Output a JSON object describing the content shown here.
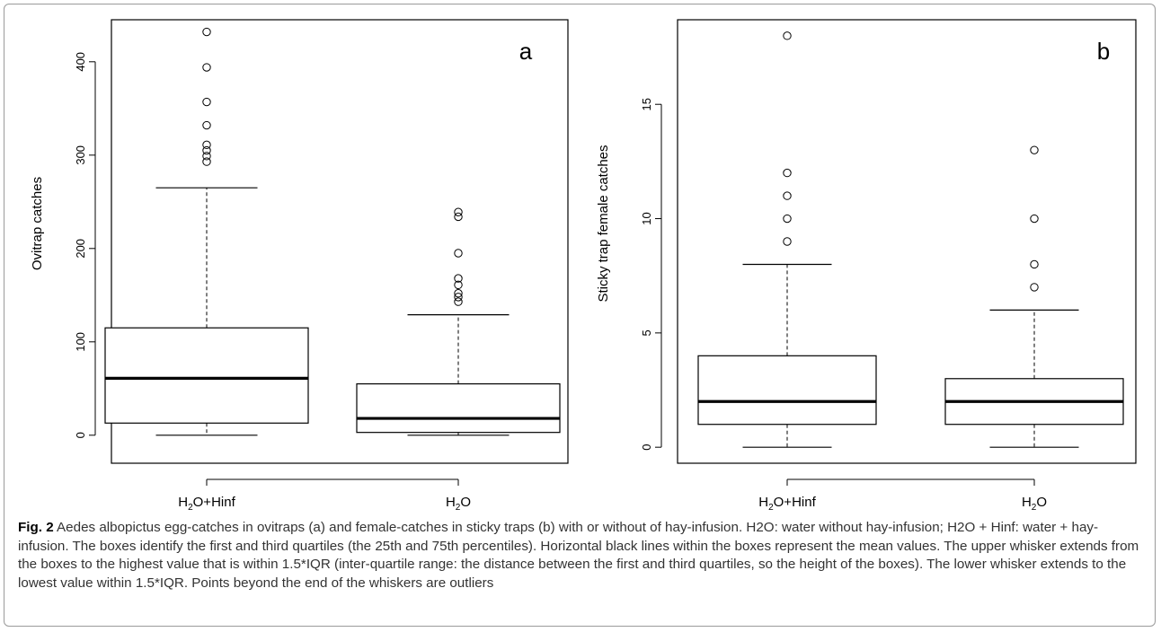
{
  "chart_data": [
    {
      "panel": "a",
      "type": "box",
      "ylabel": "Ovitrap catches",
      "categories": [
        "H2O+Hinf",
        "H2O"
      ],
      "category_labels": [
        {
          "pre": "H",
          "sub": "2",
          "post": "O+Hinf"
        },
        {
          "pre": "H",
          "sub": "2",
          "post": "O"
        }
      ],
      "ylim": [
        -30,
        445
      ],
      "yticks": [
        0,
        100,
        200,
        300,
        400
      ],
      "boxes": [
        {
          "min": 0,
          "q1": 13,
          "median": 61,
          "q3": 115,
          "whisker_high": 265,
          "outliers": [
            293,
            299,
            305,
            311,
            332,
            357,
            394,
            432
          ]
        },
        {
          "min": 0,
          "q1": 3,
          "median": 18,
          "q3": 55,
          "whisker_high": 129,
          "outliers": [
            143,
            148,
            152,
            161,
            168,
            195,
            234,
            239
          ]
        }
      ]
    },
    {
      "panel": "b",
      "type": "box",
      "ylabel": "Sticky trap female catches",
      "categories": [
        "H2O+Hinf",
        "H2O"
      ],
      "category_labels": [
        {
          "pre": "H",
          "sub": "2",
          "post": "O+Hinf"
        },
        {
          "pre": "H",
          "sub": "2",
          "post": "O"
        }
      ],
      "ylim": [
        -0.7,
        18.7
      ],
      "yticks": [
        0,
        5,
        10,
        15
      ],
      "boxes": [
        {
          "min": 0,
          "q1": 1,
          "median": 2,
          "q3": 4,
          "whisker_high": 8,
          "outliers": [
            9,
            10,
            11,
            12,
            18
          ]
        },
        {
          "min": 0,
          "q1": 1,
          "median": 2,
          "q3": 3,
          "whisker_high": 6,
          "outliers": [
            7,
            8,
            10,
            13
          ]
        }
      ]
    }
  ],
  "caption": {
    "fig_label": "Fig. 2",
    "text": " Aedes albopictus egg-catches in ovitraps (a) and female-catches in sticky traps (b) with or without of hay-infusion. H2O: water without hay-infusion; H2O + Hinf: water + hay-infusion. The boxes identify the first and third quartiles (the 25th and 75th percentiles). Horizontal black lines within the boxes represent the mean values. The upper whisker extends from the boxes to the highest value that is within 1.5*IQR (inter-quartile range: the distance between the first and third quartiles, so the height of the boxes). The lower whisker extends to the lowest value within 1.5*IQR. Points beyond the end of the whiskers are outliers"
  }
}
